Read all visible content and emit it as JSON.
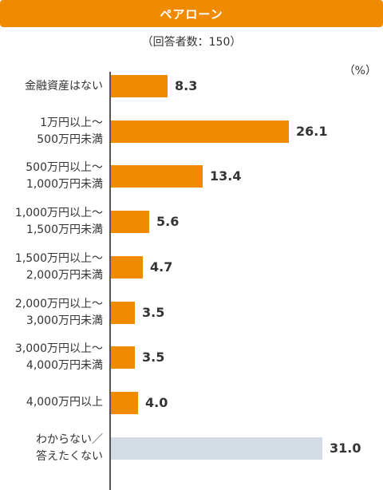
{
  "colors": {
    "accent": "#f08a00",
    "no_answer": "#d3dbe5",
    "axis": "#555555"
  },
  "chart_data": {
    "type": "bar",
    "orientation": "horizontal",
    "title": "ペアローン",
    "subtitle": "（回答者数：150）",
    "unit": "（%）",
    "categories": [
      [
        "金融資産はない"
      ],
      [
        "1万円以上～",
        "500万円未満"
      ],
      [
        "500万円以上～",
        "1,000万円未満"
      ],
      [
        "1,000万円以上～",
        "1,500万円未満"
      ],
      [
        "1,500万円以上～",
        "2,000万円未満"
      ],
      [
        "2,000万円以上～",
        "3,000万円未満"
      ],
      [
        "3,000万円以上～",
        "4,000万円未満"
      ],
      [
        "4,000万円以上"
      ],
      [
        "わからない／",
        "答えたくない"
      ]
    ],
    "values": [
      8.3,
      26.1,
      13.4,
      5.6,
      4.7,
      3.5,
      3.5,
      4.0,
      31.0
    ],
    "value_labels": [
      "8.3",
      "26.1",
      "13.4",
      "5.6",
      "4.7",
      "3.5",
      "3.5",
      "4.0",
      "31.0"
    ],
    "bar_colors": [
      "accent",
      "accent",
      "accent",
      "accent",
      "accent",
      "accent",
      "accent",
      "accent",
      "no_answer"
    ],
    "xlim": [
      0,
      31.0
    ]
  }
}
